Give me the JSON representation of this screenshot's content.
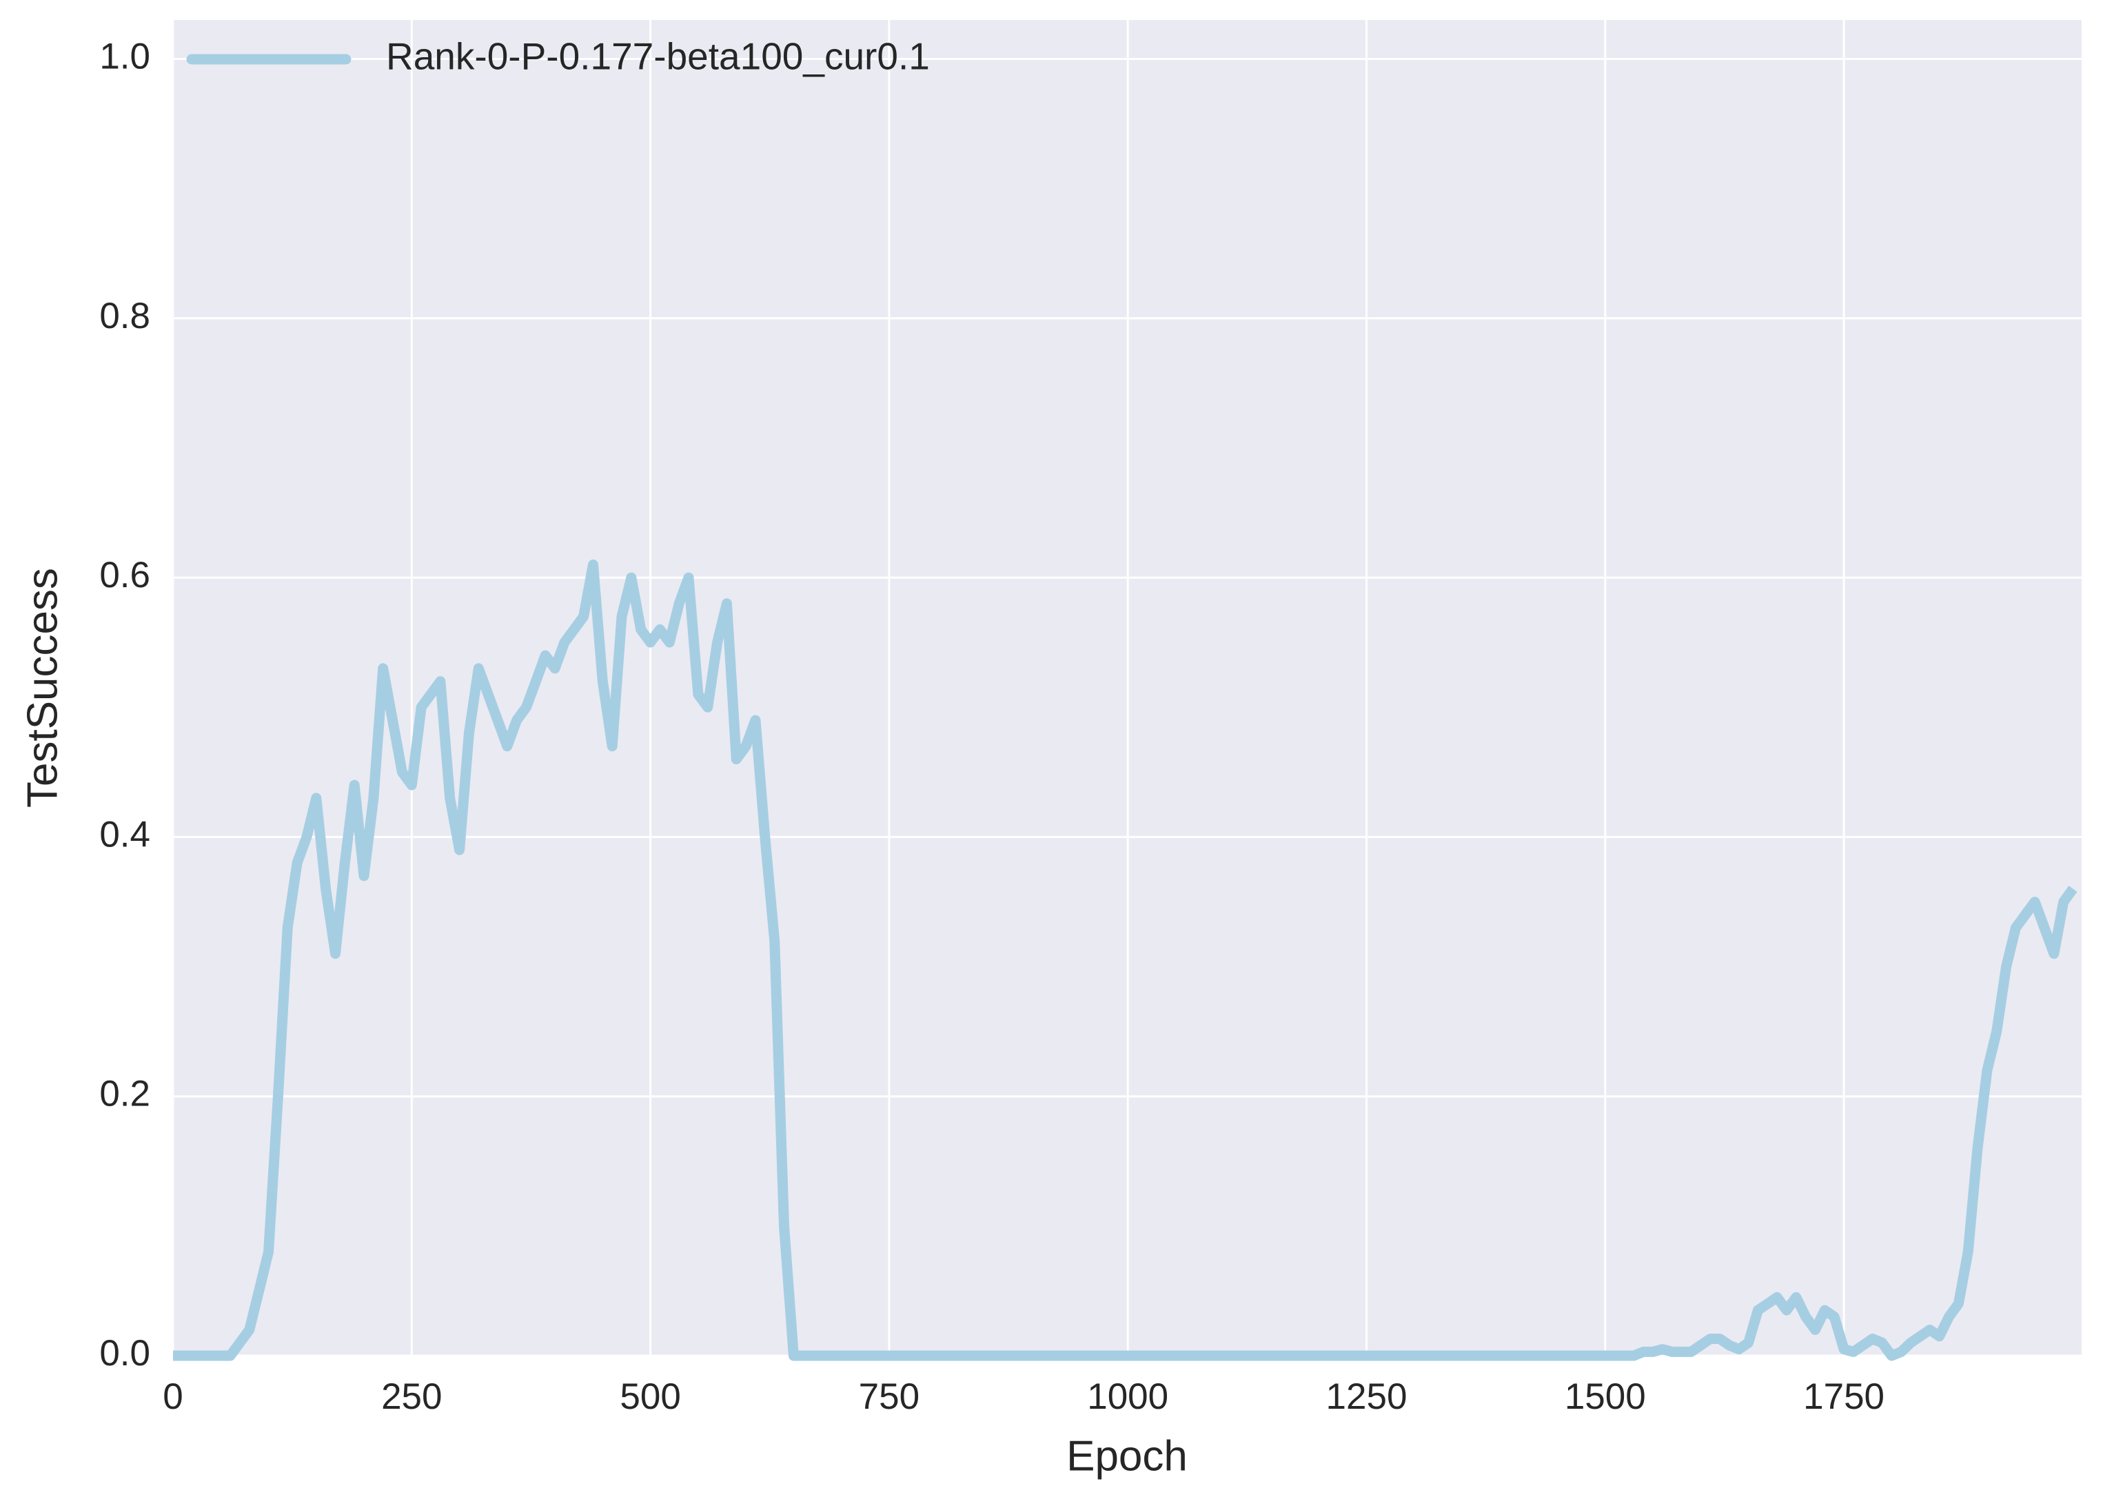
{
  "chart_data": {
    "type": "line",
    "xlabel": "Epoch",
    "ylabel": "TestSuccess",
    "x": [
      0,
      10,
      20,
      30,
      40,
      50,
      60,
      70,
      80,
      90,
      100,
      110,
      120,
      130,
      140,
      150,
      160,
      170,
      180,
      190,
      200,
      210,
      220,
      230,
      240,
      250,
      260,
      270,
      280,
      290,
      300,
      310,
      320,
      330,
      340,
      350,
      360,
      370,
      380,
      390,
      400,
      410,
      420,
      430,
      440,
      450,
      460,
      470,
      480,
      490,
      500,
      510,
      520,
      530,
      540,
      550,
      560,
      570,
      580,
      590,
      600,
      610,
      620,
      630,
      640,
      650,
      660,
      670,
      680,
      690,
      700,
      710,
      720,
      730,
      740,
      750,
      760,
      770,
      780,
      790,
      800,
      810,
      820,
      830,
      840,
      850,
      860,
      870,
      880,
      890,
      900,
      910,
      920,
      930,
      940,
      950,
      960,
      970,
      980,
      990,
      1000,
      1010,
      1020,
      1030,
      1040,
      1050,
      1060,
      1070,
      1080,
      1090,
      1100,
      1110,
      1120,
      1130,
      1140,
      1150,
      1160,
      1170,
      1180,
      1190,
      1200,
      1210,
      1220,
      1230,
      1240,
      1250,
      1260,
      1270,
      1280,
      1290,
      1300,
      1310,
      1320,
      1330,
      1340,
      1350,
      1360,
      1370,
      1380,
      1390,
      1400,
      1410,
      1420,
      1430,
      1440,
      1450,
      1460,
      1470,
      1480,
      1490,
      1500,
      1510,
      1520,
      1530,
      1540,
      1550,
      1560,
      1570,
      1580,
      1590,
      1600,
      1610,
      1620,
      1630,
      1640,
      1650,
      1660,
      1670,
      1680,
      1690,
      1700,
      1710,
      1720,
      1730,
      1740,
      1750,
      1760,
      1770,
      1780,
      1790,
      1800,
      1810,
      1820,
      1830,
      1840,
      1850,
      1860,
      1870,
      1880,
      1890,
      1900,
      1910,
      1920,
      1930,
      1940,
      1950,
      1960,
      1970,
      1980,
      1990
    ],
    "series": [
      {
        "name": "Rank-0-P-0.177-beta100_cur0.1",
        "color": "#a6cee3",
        "values": [
          0,
          0,
          0,
          0,
          0,
          0,
          0,
          0.01,
          0.02,
          0.05,
          0.08,
          0.2,
          0.33,
          0.38,
          0.4,
          0.43,
          0.36,
          0.31,
          0.38,
          0.44,
          0.37,
          0.43,
          0.53,
          0.49,
          0.45,
          0.44,
          0.5,
          0.51,
          0.52,
          0.43,
          0.39,
          0.48,
          0.53,
          0.51,
          0.49,
          0.47,
          0.49,
          0.5,
          0.52,
          0.54,
          0.53,
          0.55,
          0.56,
          0.57,
          0.61,
          0.52,
          0.47,
          0.57,
          0.6,
          0.56,
          0.55,
          0.56,
          0.55,
          0.58,
          0.6,
          0.51,
          0.5,
          0.55,
          0.58,
          0.46,
          0.47,
          0.49,
          0.4,
          0.32,
          0.1,
          0,
          0,
          0,
          0,
          0,
          0,
          0,
          0,
          0,
          0,
          0,
          0,
          0,
          0,
          0,
          0,
          0,
          0,
          0,
          0,
          0,
          0,
          0,
          0,
          0,
          0,
          0,
          0,
          0,
          0,
          0,
          0,
          0,
          0,
          0,
          0,
          0,
          0,
          0,
          0,
          0,
          0,
          0,
          0,
          0,
          0,
          0,
          0,
          0,
          0,
          0,
          0,
          0,
          0,
          0,
          0,
          0,
          0,
          0,
          0,
          0,
          0,
          0,
          0,
          0,
          0,
          0,
          0,
          0,
          0,
          0,
          0,
          0,
          0,
          0,
          0,
          0,
          0,
          0,
          0,
          0,
          0,
          0,
          0,
          0,
          0,
          0,
          0,
          0,
          0.003,
          0.003,
          0.005,
          0.003,
          0.003,
          0.003,
          0.008,
          0.013,
          0.013,
          0.008,
          0.005,
          0.01,
          0.035,
          0.04,
          0.045,
          0.035,
          0.045,
          0.03,
          0.02,
          0.035,
          0.03,
          0.005,
          0.003,
          0.008,
          0.013,
          0.01,
          0,
          0.003,
          0.01,
          0.015,
          0.02,
          0.015,
          0.03,
          0.04,
          0.08,
          0.16,
          0.22,
          0.25,
          0.3,
          0.33,
          0.34,
          0.35,
          0.33,
          0.31,
          0.35,
          0.36
        ]
      }
    ],
    "xlim": [
      0,
      1999
    ],
    "ylim": [
      0,
      1.03
    ],
    "xticks": [
      0,
      250,
      500,
      750,
      1000,
      1250,
      1500,
      1750
    ],
    "yticks": [
      {
        "value": 0,
        "label": "0.0"
      },
      0.2,
      0.4,
      0.6,
      0.8,
      {
        "value": 1,
        "label": "1.0"
      }
    ],
    "grid": true,
    "legend": "upper left"
  }
}
